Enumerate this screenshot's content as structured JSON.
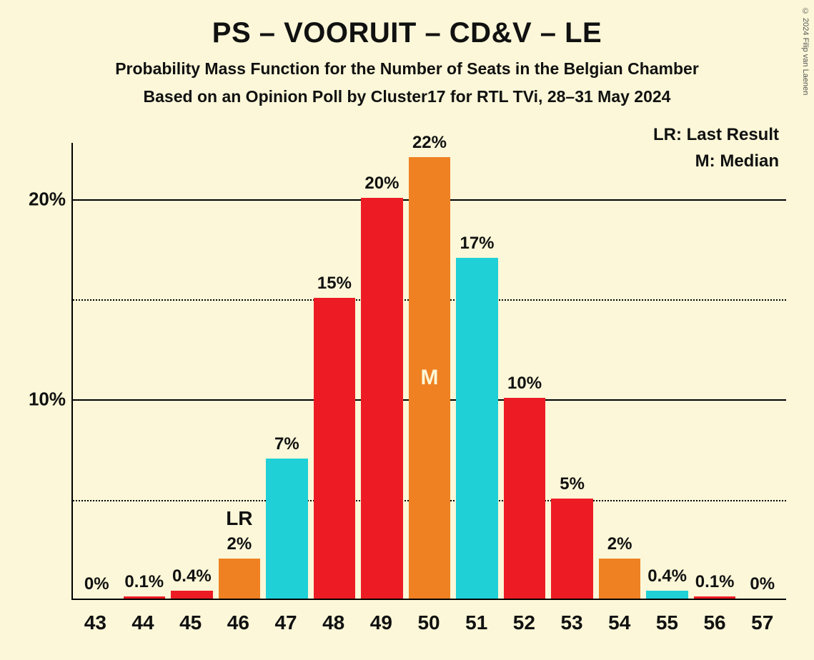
{
  "copyright": "© 2024 Filip van Laenen",
  "title": "PS – VOORUIT – CD&V – LE",
  "subtitle1": "Probability Mass Function for the Number of Seats in the Belgian Chamber",
  "subtitle2": "Based on an Opinion Poll by Cluster17 for RTL TVi, 28–31 May 2024",
  "legend": {
    "lr": "LR: Last Result",
    "m": "M: Median"
  },
  "chart": {
    "type": "bar",
    "background_color": "#fbf7d8",
    "axis_color": "#000000",
    "ylim_max": 22.8,
    "ytick_major": [
      10,
      20
    ],
    "ytick_minor": [
      5,
      15
    ],
    "ytick_labels": [
      "10%",
      "20%"
    ],
    "categories": [
      "43",
      "44",
      "45",
      "46",
      "47",
      "48",
      "49",
      "50",
      "51",
      "52",
      "53",
      "54",
      "55",
      "56",
      "57"
    ],
    "values": [
      0,
      0.1,
      0.4,
      2,
      7,
      15,
      20,
      22,
      17,
      10,
      5,
      2,
      0.4,
      0.1,
      0
    ],
    "value_labels": [
      "0%",
      "0.1%",
      "0.4%",
      "2%",
      "7%",
      "15%",
      "20%",
      "22%",
      "17%",
      "10%",
      "5%",
      "2%",
      "0.4%",
      "0.1%",
      "0%"
    ],
    "bar_colors": [
      "#ed1c24",
      "#ed1c24",
      "#ed1c24",
      "#ef8122",
      "#1fd0d7",
      "#ed1c24",
      "#ed1c24",
      "#ef8122",
      "#1fd0d7",
      "#ed1c24",
      "#ed1c24",
      "#ef8122",
      "#1fd0d7",
      "#ed1c24",
      "#ed1c24"
    ],
    "lr_index": 3,
    "lr_text": "LR",
    "median_index": 7,
    "median_text": "M",
    "label_fontsize": 24,
    "tick_fontsize": 28
  }
}
